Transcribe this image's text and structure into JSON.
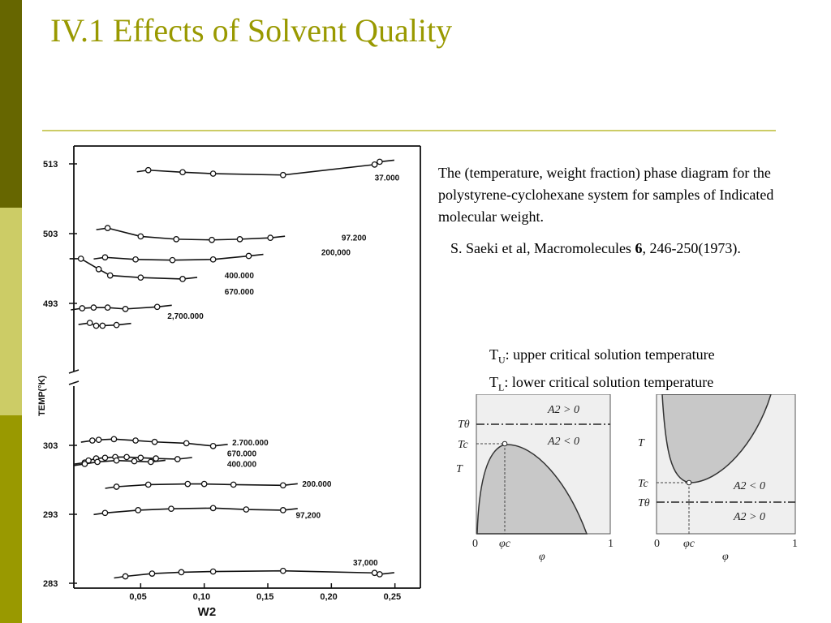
{
  "title": "IV.1 Effects of Solvent Quality",
  "description": "The (temperature, weight fraction) phase diagram for the polystyrene-cyclohexane system for samples of Indicated molecular weight.",
  "citation": {
    "authors": "S. Saeki et al, Macromolecules ",
    "volume": "6",
    "pages": ", 246-250(1973)."
  },
  "definitions": [
    {
      "sym": "T",
      "sub": "U",
      "text": ": upper critical solution temperature"
    },
    {
      "sym": "T",
      "sub": "L",
      "text": ": lower critical solution temperature"
    }
  ],
  "colors": {
    "title": "#999900",
    "sidebar_top": "#666600",
    "sidebar_mid": "#cccc66",
    "sidebar_bot": "#999900",
    "rule": "#cccc66",
    "two_phase_fill": "#c8c8c8"
  },
  "chart_data": [
    {
      "type": "scatter",
      "xlabel": "W2",
      "ylabel": "TEMP(°K)",
      "x_ticks": [
        "0,05",
        "0,10",
        "0,15",
        "0,20",
        "0,25"
      ],
      "x_tick_values": [
        0.05,
        0.1,
        0.15,
        0.2,
        0.25
      ],
      "y_ticks_upper": [
        "513",
        "503",
        "493"
      ],
      "y_ticks_lower": [
        "303",
        "293",
        "283"
      ],
      "upper_range": [
        490,
        515
      ],
      "lower_range": [
        283,
        308
      ],
      "axis_break": true,
      "series": [
        {
          "name": "37.000",
          "branch": "upper",
          "x": [
            0.056,
            0.083,
            0.107,
            0.162,
            0.234,
            0.238
          ],
          "y": [
            512.1,
            511.8,
            511.6,
            511.4,
            512.9,
            513.3
          ]
        },
        {
          "name": "97.200",
          "branch": "upper",
          "x": [
            0.024,
            0.05,
            0.078,
            0.106,
            0.128,
            0.152
          ],
          "y": [
            503.8,
            502.6,
            502.2,
            502.1,
            502.2,
            502.4
          ]
        },
        {
          "name": "200,000",
          "branch": "upper",
          "x": [
            0.022,
            0.046,
            0.075,
            0.107,
            0.135
          ],
          "y": [
            499.6,
            499.3,
            499.2,
            499.3,
            499.8
          ]
        },
        {
          "name": "400.000",
          "branch": "upper",
          "x": [
            0.003,
            0.017,
            0.026,
            0.05,
            0.083
          ],
          "y": [
            499.4,
            497.9,
            497.0,
            496.7,
            496.5
          ]
        },
        {
          "name": "670.000",
          "branch": "upper",
          "x": [
            0.004,
            0.013,
            0.024,
            0.038,
            0.063
          ],
          "y": [
            492.3,
            492.4,
            492.4,
            492.2,
            492.5
          ]
        },
        {
          "name": "2,700.000",
          "branch": "upper",
          "x": [
            0.01,
            0.015,
            0.02,
            0.031
          ],
          "y": [
            490.2,
            489.8,
            489.8,
            489.9
          ]
        },
        {
          "name": "2.700.000",
          "branch": "lower",
          "x": [
            0.012,
            0.017,
            0.029,
            0.046,
            0.061,
            0.086,
            0.107
          ],
          "y": [
            303.7,
            303.8,
            303.9,
            303.7,
            303.5,
            303.3,
            302.9
          ]
        },
        {
          "name": "670.000",
          "branch": "lower",
          "x": [
            0.006,
            0.009,
            0.015,
            0.022,
            0.03,
            0.039,
            0.05,
            0.062,
            0.079
          ],
          "y": [
            300.5,
            300.8,
            301.1,
            301.2,
            301.3,
            301.3,
            301.2,
            301.1,
            301.0
          ]
        },
        {
          "name": "400.000",
          "branch": "lower",
          "x": [
            0.006,
            0.016,
            0.031,
            0.045,
            0.058
          ],
          "y": [
            300.3,
            300.6,
            300.8,
            300.7,
            300.6
          ]
        },
        {
          "name": "200.000",
          "branch": "lower",
          "x": [
            0.031,
            0.056,
            0.087,
            0.1,
            0.123,
            0.162
          ],
          "y": [
            297.0,
            297.3,
            297.4,
            297.4,
            297.3,
            297.2
          ]
        },
        {
          "name": "97,200",
          "branch": "lower",
          "x": [
            0.022,
            0.048,
            0.074,
            0.107,
            0.133,
            0.162
          ],
          "y": [
            293.2,
            293.6,
            293.8,
            293.9,
            293.7,
            293.6
          ]
        },
        {
          "name": "37,000",
          "branch": "lower",
          "x": [
            0.038,
            0.059,
            0.082,
            0.107,
            0.162,
            0.234,
            0.238
          ],
          "y": [
            284.0,
            284.4,
            284.6,
            284.7,
            284.8,
            284.5,
            284.3
          ]
        }
      ]
    },
    {
      "type": "diagram",
      "name": "UCST schematic",
      "ylabel": "T",
      "xlabel": "φ",
      "y_marks": [
        "Tθ",
        "Tc"
      ],
      "x_marks": [
        "0",
        "φc",
        "1"
      ],
      "region_labels": [
        "A2 > 0",
        "A2 < 0"
      ]
    },
    {
      "type": "diagram",
      "name": "LCST schematic",
      "ylabel": "T",
      "xlabel": "φ",
      "y_marks": [
        "Tc",
        "Tθ"
      ],
      "x_marks": [
        "0",
        "φc",
        "1"
      ],
      "region_labels": [
        "A2 < 0",
        "A2 > 0"
      ]
    }
  ]
}
